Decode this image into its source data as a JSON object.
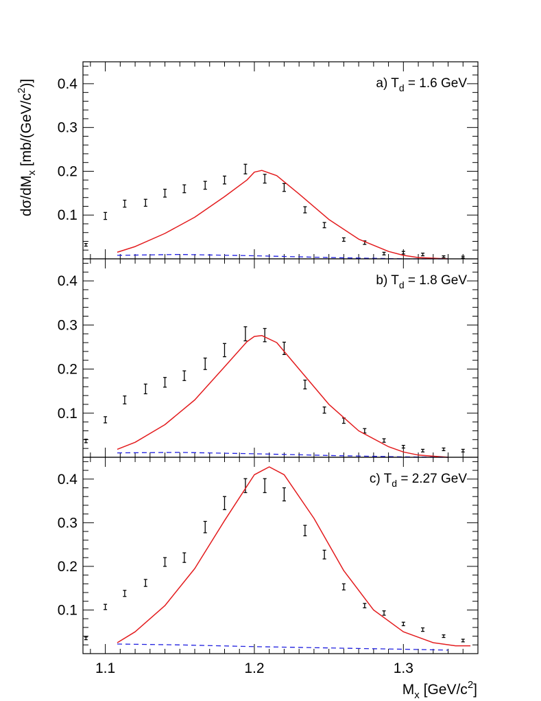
{
  "figure": {
    "ylabel": {
      "main": "dσ/dM",
      "sub": "x",
      "rest": " [mb/(GeV/c",
      "sup": "2",
      "end": ")]"
    },
    "xlabel": {
      "main": "M",
      "sub": "x",
      "rest": "  [GeV/c",
      "sup": "2",
      "end": "]"
    }
  },
  "colors": {
    "curve": "#e31a1c",
    "dashed": "#1f1fe0",
    "points": "#000000",
    "axis": "#000000"
  },
  "chart_data": [
    {
      "type": "scatter",
      "panel_label": {
        "prefix": "a) T",
        "sub": "d",
        "suffix": " = 1.6 GeV"
      },
      "xlim": [
        1.085,
        1.35
      ],
      "ylim": [
        0.0,
        0.45
      ],
      "x_ticks": [
        1.1,
        1.2,
        1.3
      ],
      "x_ticklabels": [
        "1.1",
        "1.2",
        "1.3"
      ],
      "y_ticks": [
        0.1,
        0.2,
        0.3,
        0.4
      ],
      "y_ticklabels": [
        "0.1",
        "0.2",
        "0.3",
        "0.4"
      ],
      "grid": false,
      "series": [
        {
          "kind": "points_with_errors",
          "x": [
            1.087,
            1.1,
            1.113,
            1.127,
            1.14,
            1.153,
            1.167,
            1.18,
            1.194,
            1.207,
            1.22,
            1.234,
            1.247,
            1.26,
            1.274,
            1.287,
            1.3,
            1.313,
            1.327,
            1.34
          ],
          "y": [
            0.032,
            0.098,
            0.126,
            0.128,
            0.15,
            0.16,
            0.168,
            0.18,
            0.205,
            0.183,
            0.163,
            0.112,
            0.077,
            0.044,
            0.037,
            0.012,
            0.014,
            0.01,
            0.005,
            0.004
          ],
          "err": [
            0.003,
            0.008,
            0.008,
            0.008,
            0.009,
            0.009,
            0.009,
            0.009,
            0.011,
            0.01,
            0.009,
            0.007,
            0.006,
            0.004,
            0.004,
            0.003,
            0.003,
            0.003,
            0.002,
            0.002
          ]
        },
        {
          "kind": "curve",
          "x": [
            1.108,
            1.12,
            1.14,
            1.16,
            1.18,
            1.195,
            1.2,
            1.205,
            1.215,
            1.23,
            1.25,
            1.27,
            1.29,
            1.3,
            1.31,
            1.33
          ],
          "y": [
            0.015,
            0.028,
            0.058,
            0.095,
            0.142,
            0.18,
            0.198,
            0.202,
            0.19,
            0.148,
            0.09,
            0.045,
            0.017,
            0.008,
            0.003,
            0.0
          ]
        },
        {
          "kind": "dashed",
          "x": [
            1.108,
            1.15,
            1.2,
            1.25,
            1.3,
            1.33
          ],
          "y": [
            0.008,
            0.01,
            0.007,
            0.003,
            0.0,
            0.0
          ]
        }
      ]
    },
    {
      "type": "scatter",
      "panel_label": {
        "prefix": "b) T",
        "sub": "d",
        "suffix": " = 1.8 GeV"
      },
      "xlim": [
        1.085,
        1.35
      ],
      "ylim": [
        0.0,
        0.45
      ],
      "x_ticks": [
        1.1,
        1.2,
        1.3
      ],
      "x_ticklabels": [
        "1.1",
        "1.2",
        "1.3"
      ],
      "y_ticks": [
        0.1,
        0.2,
        0.3,
        0.4
      ],
      "y_ticklabels": [
        "0.1",
        "0.2",
        "0.3",
        "0.4"
      ],
      "grid": false,
      "series": [
        {
          "kind": "points_with_errors",
          "x": [
            1.087,
            1.1,
            1.113,
            1.127,
            1.14,
            1.153,
            1.167,
            1.18,
            1.194,
            1.207,
            1.22,
            1.234,
            1.247,
            1.26,
            1.274,
            1.287,
            1.3,
            1.313,
            1.327,
            1.34
          ],
          "y": [
            0.037,
            0.085,
            0.13,
            0.155,
            0.17,
            0.185,
            0.212,
            0.243,
            0.28,
            0.277,
            0.247,
            0.165,
            0.107,
            0.083,
            0.06,
            0.038,
            0.024,
            0.015,
            0.018,
            0.015
          ],
          "err": [
            0.004,
            0.007,
            0.009,
            0.011,
            0.011,
            0.011,
            0.013,
            0.015,
            0.016,
            0.015,
            0.014,
            0.01,
            0.007,
            0.006,
            0.005,
            0.004,
            0.003,
            0.003,
            0.003,
            0.003
          ]
        },
        {
          "kind": "curve",
          "x": [
            1.108,
            1.12,
            1.14,
            1.16,
            1.18,
            1.195,
            1.2,
            1.205,
            1.215,
            1.23,
            1.25,
            1.27,
            1.29,
            1.3,
            1.31,
            1.33
          ],
          "y": [
            0.018,
            0.034,
            0.074,
            0.13,
            0.205,
            0.262,
            0.274,
            0.276,
            0.26,
            0.2,
            0.12,
            0.06,
            0.024,
            0.012,
            0.005,
            0.0
          ]
        },
        {
          "kind": "dashed",
          "x": [
            1.108,
            1.15,
            1.2,
            1.25,
            1.3,
            1.33
          ],
          "y": [
            0.01,
            0.011,
            0.008,
            0.004,
            0.001,
            0.0
          ]
        }
      ]
    },
    {
      "type": "scatter",
      "panel_label": {
        "prefix": "c) T",
        "sub": "d",
        "suffix": " = 2.27 GeV"
      },
      "xlim": [
        1.085,
        1.35
      ],
      "ylim": [
        0.0,
        0.45
      ],
      "x_ticks": [
        1.1,
        1.2,
        1.3
      ],
      "x_ticklabels": [
        "1.1",
        "1.2",
        "1.3"
      ],
      "y_ticks": [
        0.1,
        0.2,
        0.3,
        0.4
      ],
      "y_ticklabels": [
        "0.1",
        "0.2",
        "0.3",
        "0.4"
      ],
      "grid": false,
      "series": [
        {
          "kind": "points_with_errors",
          "x": [
            1.087,
            1.1,
            1.113,
            1.127,
            1.14,
            1.153,
            1.167,
            1.18,
            1.194,
            1.207,
            1.22,
            1.234,
            1.247,
            1.26,
            1.274,
            1.287,
            1.3,
            1.313,
            1.327,
            1.34
          ],
          "y": [
            0.035,
            0.107,
            0.138,
            0.162,
            0.21,
            0.22,
            0.29,
            0.345,
            0.385,
            0.385,
            0.365,
            0.282,
            0.227,
            0.153,
            0.11,
            0.093,
            0.068,
            0.055,
            0.04,
            0.03
          ],
          "err": [
            0.003,
            0.006,
            0.007,
            0.008,
            0.01,
            0.011,
            0.013,
            0.015,
            0.016,
            0.016,
            0.015,
            0.012,
            0.01,
            0.007,
            0.005,
            0.005,
            0.004,
            0.004,
            0.003,
            0.003
          ]
        },
        {
          "kind": "curve",
          "x": [
            1.108,
            1.12,
            1.14,
            1.16,
            1.18,
            1.2,
            1.21,
            1.22,
            1.24,
            1.26,
            1.28,
            1.3,
            1.32,
            1.335,
            1.345
          ],
          "y": [
            0.025,
            0.05,
            0.11,
            0.195,
            0.305,
            0.41,
            0.428,
            0.41,
            0.31,
            0.19,
            0.1,
            0.05,
            0.025,
            0.018,
            0.018
          ]
        },
        {
          "kind": "dashed",
          "x": [
            1.108,
            1.15,
            1.2,
            1.25,
            1.3,
            1.33
          ],
          "y": [
            0.022,
            0.02,
            0.016,
            0.013,
            0.01,
            0.008
          ]
        }
      ]
    }
  ]
}
